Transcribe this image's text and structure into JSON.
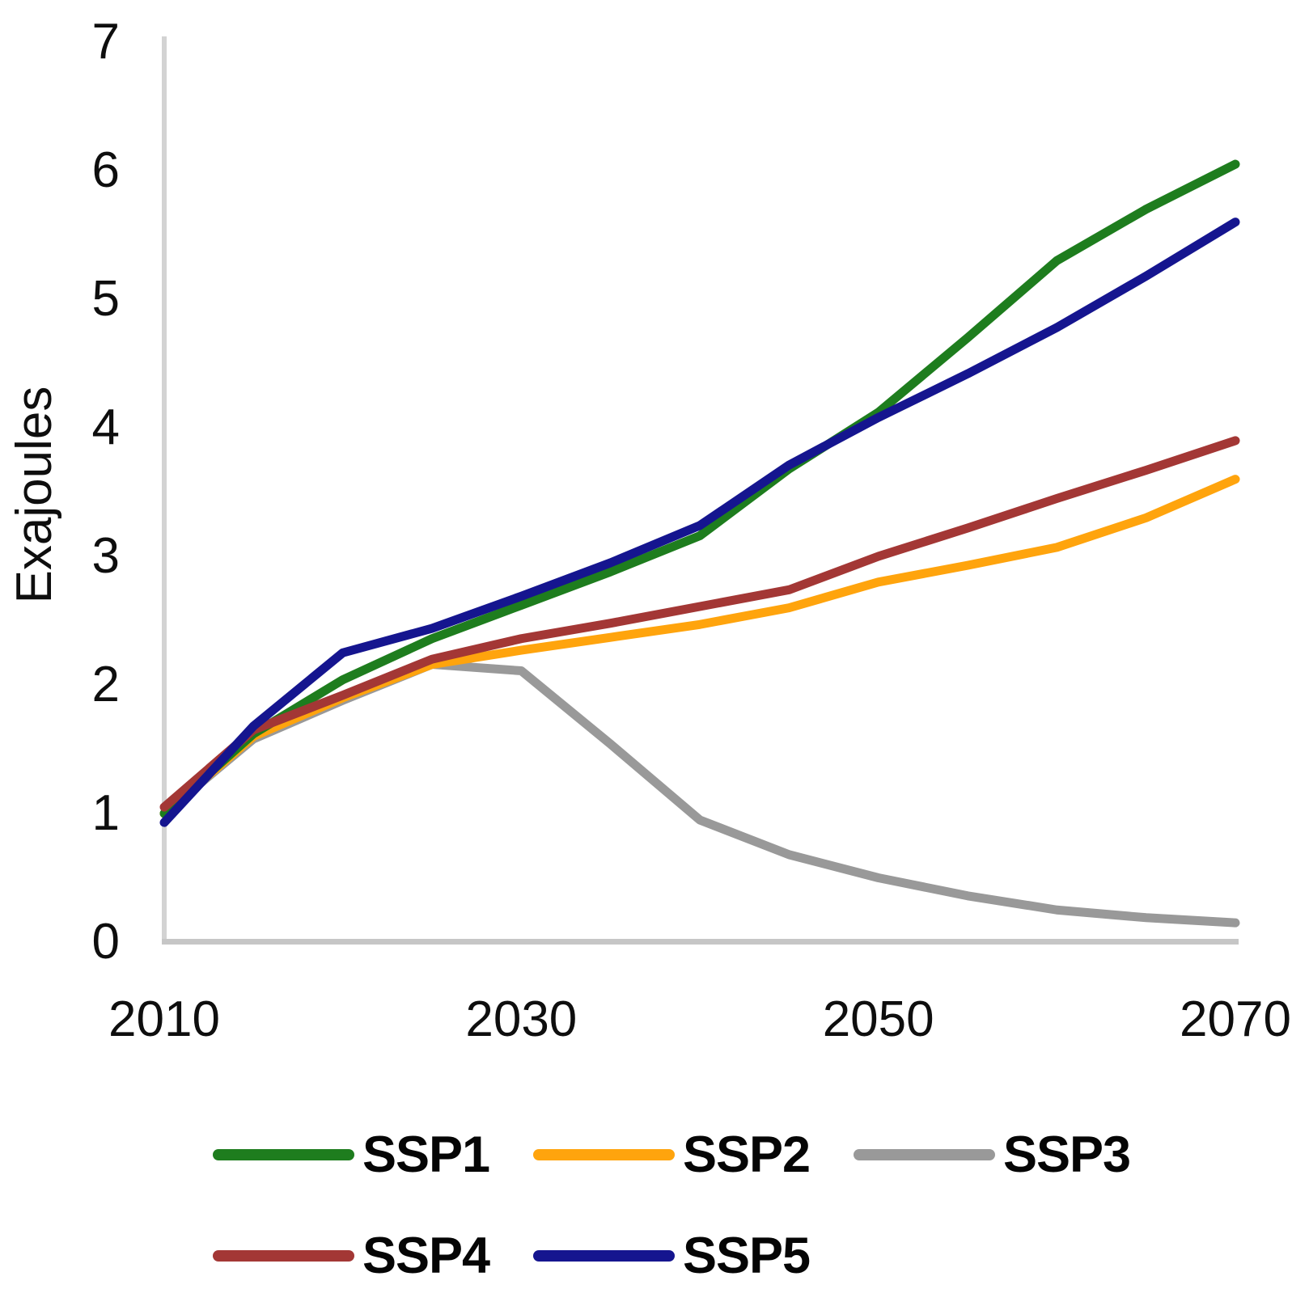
{
  "chart_data": {
    "type": "line",
    "title": "",
    "xlabel": "",
    "ylabel": "Exajoules",
    "x": [
      2010,
      2015,
      2020,
      2025,
      2030,
      2035,
      2040,
      2045,
      2050,
      2055,
      2060,
      2065,
      2070
    ],
    "xlim": [
      2010,
      2070
    ],
    "ylim": [
      0,
      7
    ],
    "x_ticks": [
      2010,
      2030,
      2050,
      2070
    ],
    "x_tick_labels": [
      "2010",
      "2030",
      "2050",
      "2070"
    ],
    "y_ticks": [
      0,
      1,
      2,
      3,
      4,
      5,
      6,
      7
    ],
    "y_tick_labels": [
      "0",
      "1",
      "2",
      "3",
      "4",
      "5",
      "6",
      "7"
    ],
    "grid": false,
    "legend_position": "bottom",
    "legend_rows": [
      [
        "SSP1",
        "SSP2",
        "SSP3"
      ],
      [
        "SSP4",
        "SSP5"
      ]
    ],
    "draw_order": [
      "SSP3",
      "SSP2",
      "SSP1",
      "SSP4",
      "SSP5"
    ],
    "line_width": 11,
    "axis_color_vertical": "#d3d3d3",
    "axis_color_horizontal": "#c6c6c6",
    "series": [
      {
        "name": "SSP1",
        "color": "#1e7d1e",
        "values": [
          1.0,
          1.62,
          2.04,
          2.36,
          2.62,
          2.88,
          3.16,
          3.68,
          4.12,
          4.7,
          5.3,
          5.7,
          6.05
        ]
      },
      {
        "name": "SSP2",
        "color": "#ffa40d",
        "values": [
          1.0,
          1.6,
          1.9,
          2.16,
          2.27,
          2.37,
          2.47,
          2.6,
          2.8,
          2.93,
          3.07,
          3.3,
          3.6
        ]
      },
      {
        "name": "SSP3",
        "color": "#999999",
        "values": [
          1.0,
          1.58,
          1.88,
          2.16,
          2.11,
          1.54,
          0.95,
          0.68,
          0.5,
          0.36,
          0.25,
          0.19,
          0.15
        ]
      },
      {
        "name": "SSP4",
        "color": "#a33735",
        "values": [
          1.05,
          1.65,
          1.92,
          2.2,
          2.36,
          2.48,
          2.61,
          2.74,
          3.0,
          3.22,
          3.45,
          3.67,
          3.9
        ]
      },
      {
        "name": "SSP5",
        "color": "#15158f",
        "values": [
          0.93,
          1.68,
          2.25,
          2.44,
          2.69,
          2.95,
          3.24,
          3.71,
          4.08,
          4.42,
          4.78,
          5.18,
          5.6
        ]
      }
    ]
  }
}
